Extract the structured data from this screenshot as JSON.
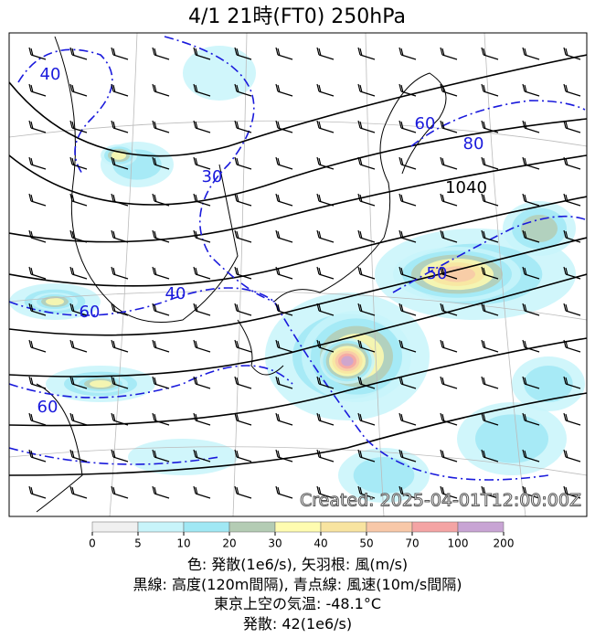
{
  "title": "4/1  21時(FT0)    250hPa",
  "created": "Created: 2025-04-01T12:00:00Z",
  "contour_labels": [
    {
      "text": "40",
      "color": "#1a1adc"
    },
    {
      "text": "30",
      "color": "#1a1adc"
    },
    {
      "text": "40",
      "color": "#1a1adc"
    },
    {
      "text": "60",
      "color": "#1a1adc"
    },
    {
      "text": "60",
      "color": "#1a1adc"
    },
    {
      "text": "60",
      "color": "#1a1adc"
    },
    {
      "text": "80",
      "color": "#1a1adc"
    },
    {
      "text": "50",
      "color": "#1a1adc"
    },
    {
      "text": "1040",
      "color": "#000000"
    }
  ],
  "colorbar": {
    "ticks": [
      0,
      5,
      10,
      20,
      30,
      40,
      50,
      70,
      100,
      200
    ],
    "colors": [
      "#f0f0f0",
      "#c8f4fa",
      "#a0e8f4",
      "#b4ccb4",
      "#fffcb0",
      "#f8e4a0",
      "#f8c8a8",
      "#f4a4a4",
      "#c8a4d4"
    ]
  },
  "captions": [
    "色: 発散(1e6/s), 矢羽根: 風(m/s)",
    "黒線: 高度(120m間隔), 青点線: 風速(10m/s間隔)",
    "東京上空の気温: -48.1°C",
    "発散: 42(1e6/s)"
  ]
}
